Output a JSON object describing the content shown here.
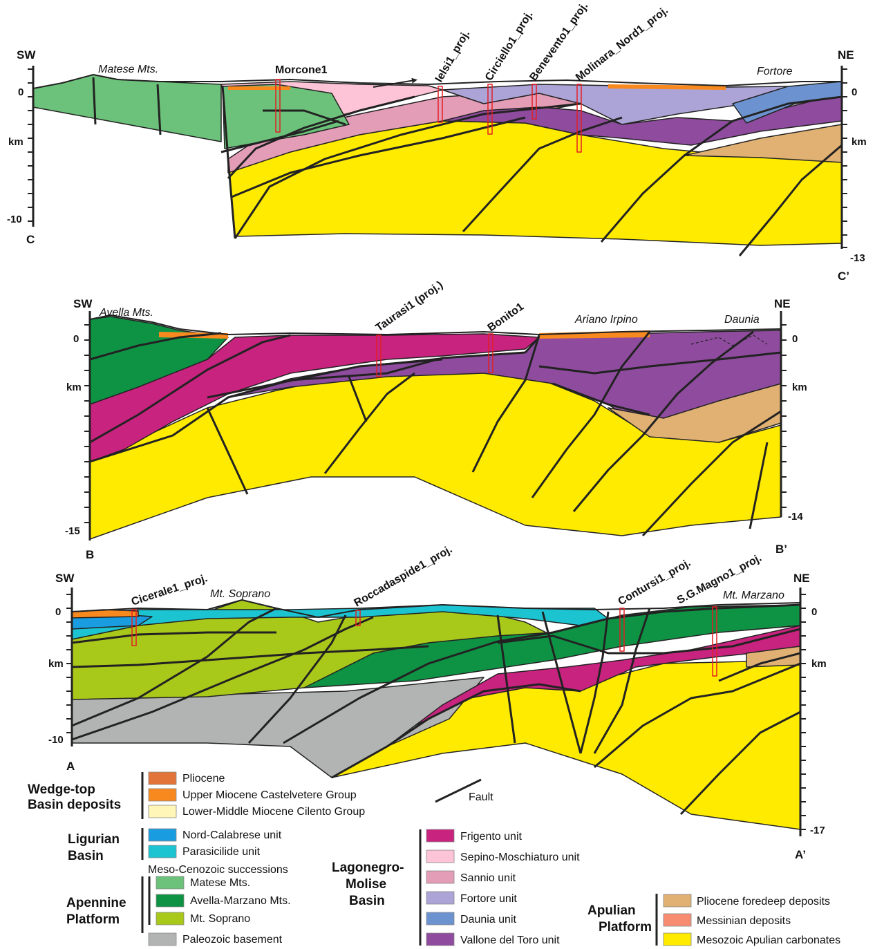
{
  "colors": {
    "pliocene": "#E2743A",
    "castelvetere": "#F7891F",
    "cilento": "#FFF6B8",
    "nord_calabrese": "#1A9CE0",
    "parasicilide": "#1CC4D2",
    "matese": "#6CC27A",
    "avella": "#0E9345",
    "soprano": "#A8C81A",
    "paleozoic": "#B2B4B3",
    "frigento": "#C8237F",
    "sepino": "#FCC4D6",
    "sannio": "#E49DB6",
    "fortore": "#ACA3D6",
    "daunia": "#6C93CF",
    "vallone": "#8F4C9E",
    "pliocene_foredeep": "#E0B172",
    "messinian": "#F78C70",
    "apulian": "#FFEB00"
  },
  "sections": {
    "cc": {
      "left_end": "C",
      "right_end": "C’",
      "left_dir": "SW",
      "right_dir": "NE",
      "left_ticks": [
        "0",
        "km",
        "-10"
      ],
      "right_ticks": [
        "0",
        "km",
        "-13"
      ],
      "place_labels": [
        "Matese Mts.",
        "Fortore"
      ],
      "wells": [
        "Morcone1",
        "Ielsi1_proj.",
        "Circiello1_proj.",
        "Benevento1_proj.",
        "Molinara_Nord1_proj."
      ]
    },
    "bb": {
      "left_end": "B",
      "right_end": "B’",
      "left_dir": "SW",
      "right_dir": "NE",
      "left_ticks": [
        "0",
        "km",
        "-15"
      ],
      "right_ticks": [
        "0",
        "km",
        "-14"
      ],
      "place_labels": [
        "Avella Mts.",
        "Ariano Irpino",
        "Daunia"
      ],
      "wells": [
        "Taurasi1 (proj.)",
        "Bonito1"
      ]
    },
    "aa": {
      "left_end": "A",
      "right_end": "A’",
      "left_dir": "SW",
      "right_dir": "NE",
      "left_ticks": [
        "0",
        "km",
        "-10"
      ],
      "right_ticks": [
        "0",
        "km",
        "-17"
      ],
      "place_labels": [
        "Mt. Soprano",
        "Mt. Marzano"
      ],
      "wells": [
        "Cicerale1_proj.",
        "Roccadaspide1_proj.",
        "Contursi1_proj.",
        "S.G.Magno1_proj."
      ]
    }
  },
  "legend": {
    "wedge_top": {
      "title_1": "Wedge-top",
      "title_2": "Basin deposits",
      "items": [
        "Pliocene",
        "Upper Miocene Castelvetere Group",
        "Lower-Middle Miocene Cilento Group"
      ]
    },
    "ligurian": {
      "title_1": "Ligurian",
      "title_2": "Basin",
      "items": [
        "Nord-Calabrese unit",
        "Parasicilide unit"
      ]
    },
    "apennine": {
      "subtitle": "Meso-Cenozoic successions",
      "title_1": "Apennine",
      "title_2": "Platform",
      "items": [
        "Matese Mts.",
        "Avella-Marzano Mts.",
        "Mt. Soprano"
      ],
      "basement": "Paleozoic basement"
    },
    "lagonegro": {
      "title_1": "Lagonegro-",
      "title_2": "Molise",
      "title_3": "Basin",
      "items": [
        "Frigento unit",
        "Sepino-Moschiaturo unit",
        "Sannio unit",
        "Fortore unit",
        "Daunia unit",
        "Vallone del Toro unit"
      ]
    },
    "apulian": {
      "title_1": "Apulian",
      "title_2": "Platform",
      "items": [
        "Pliocene foredeep deposits",
        "Messinian deposits",
        "Mesozoic Apulian carbonates"
      ]
    },
    "fault": "Fault"
  }
}
